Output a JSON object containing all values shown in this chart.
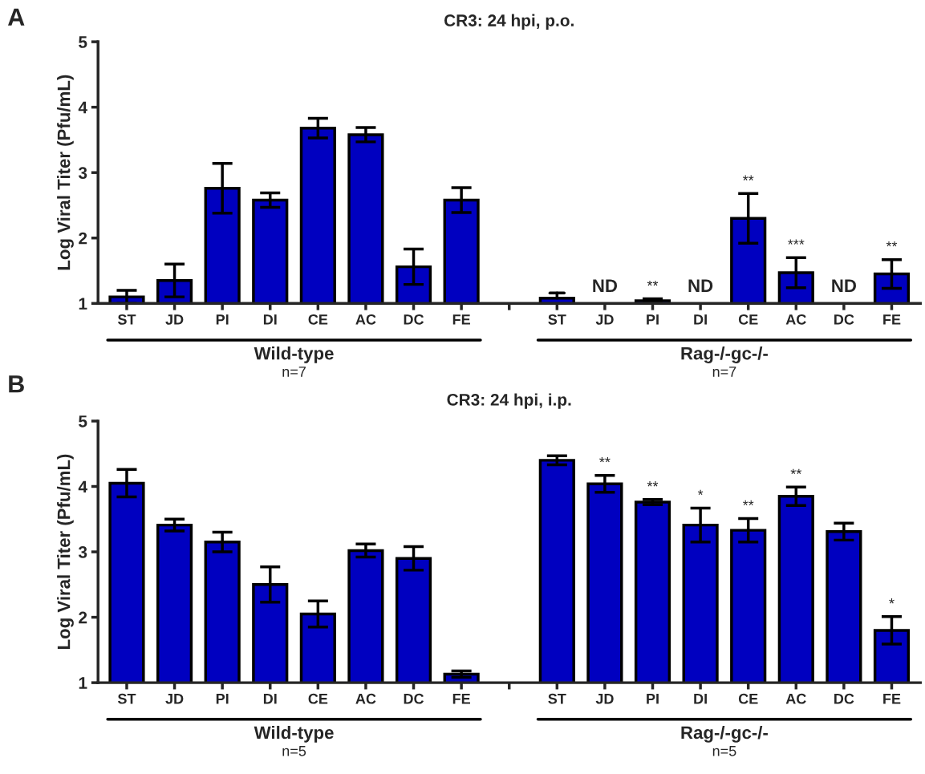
{
  "chart_data": [
    {
      "type": "bar",
      "title": "CR3: 24 hpi, p.o.",
      "ylabel": "Log Viral Titer (Pfu/mL)",
      "color": "#0000c0",
      "categories": [
        "ST",
        "JD",
        "PI",
        "DI",
        "CE",
        "AC",
        "DC",
        "FE",
        null,
        "ST",
        "JD",
        "PI",
        "DI",
        "CE",
        "AC",
        "DC",
        "FE"
      ],
      "values": [
        1.1,
        1.35,
        2.76,
        2.58,
        3.68,
        3.58,
        1.56,
        2.58,
        null,
        1.08,
        null,
        1.04,
        null,
        2.3,
        1.47,
        null,
        1.45
      ],
      "errors": [
        0.1,
        0.25,
        0.38,
        0.11,
        0.15,
        0.11,
        0.27,
        0.19,
        null,
        [
          1.08,
          1.16
        ],
        null,
        0.03,
        null,
        0.38,
        0.23,
        null,
        0.22
      ],
      "value_labels": [
        null,
        null,
        null,
        null,
        null,
        null,
        null,
        null,
        null,
        null,
        "ND",
        "**",
        "ND",
        "**",
        "***",
        "ND",
        "**"
      ],
      "ylim": [
        1,
        5
      ],
      "yticks": [
        1,
        2,
        3,
        4,
        5
      ],
      "annotations": [
        "A",
        "Wild-type",
        "n=7",
        "Rag-/-gc-/-",
        "n=7"
      ]
    },
    {
      "type": "bar",
      "title": "CR3: 24 hpi, i.p.",
      "ylabel": "Log Viral Titer (Pfu/mL)",
      "color": "#0000c0",
      "categories": [
        "ST",
        "JD",
        "PI",
        "DI",
        "CE",
        "AC",
        "DC",
        "FE",
        null,
        "ST",
        "JD",
        "PI",
        "DI",
        "CE",
        "AC",
        "DC",
        "FE"
      ],
      "values": [
        4.05,
        3.41,
        3.15,
        2.5,
        2.05,
        3.02,
        2.9,
        1.13,
        null,
        4.4,
        4.04,
        3.76,
        3.41,
        3.33,
        3.85,
        3.31,
        1.8
      ],
      "errors": [
        0.21,
        0.09,
        0.15,
        0.27,
        0.2,
        0.1,
        0.18,
        0.05,
        null,
        0.07,
        0.13,
        0.04,
        0.26,
        0.18,
        0.14,
        0.13,
        0.21
      ],
      "value_labels": [
        null,
        null,
        null,
        null,
        null,
        null,
        null,
        null,
        null,
        null,
        "**",
        "**",
        "*",
        "**",
        "**",
        null,
        "*"
      ],
      "ylim": [
        1,
        5
      ],
      "yticks": [
        1,
        2,
        3,
        4,
        5
      ],
      "annotations": [
        "B",
        "Wild-type",
        "n=5",
        "Rag-/-gc-/-",
        "n=5"
      ]
    }
  ]
}
